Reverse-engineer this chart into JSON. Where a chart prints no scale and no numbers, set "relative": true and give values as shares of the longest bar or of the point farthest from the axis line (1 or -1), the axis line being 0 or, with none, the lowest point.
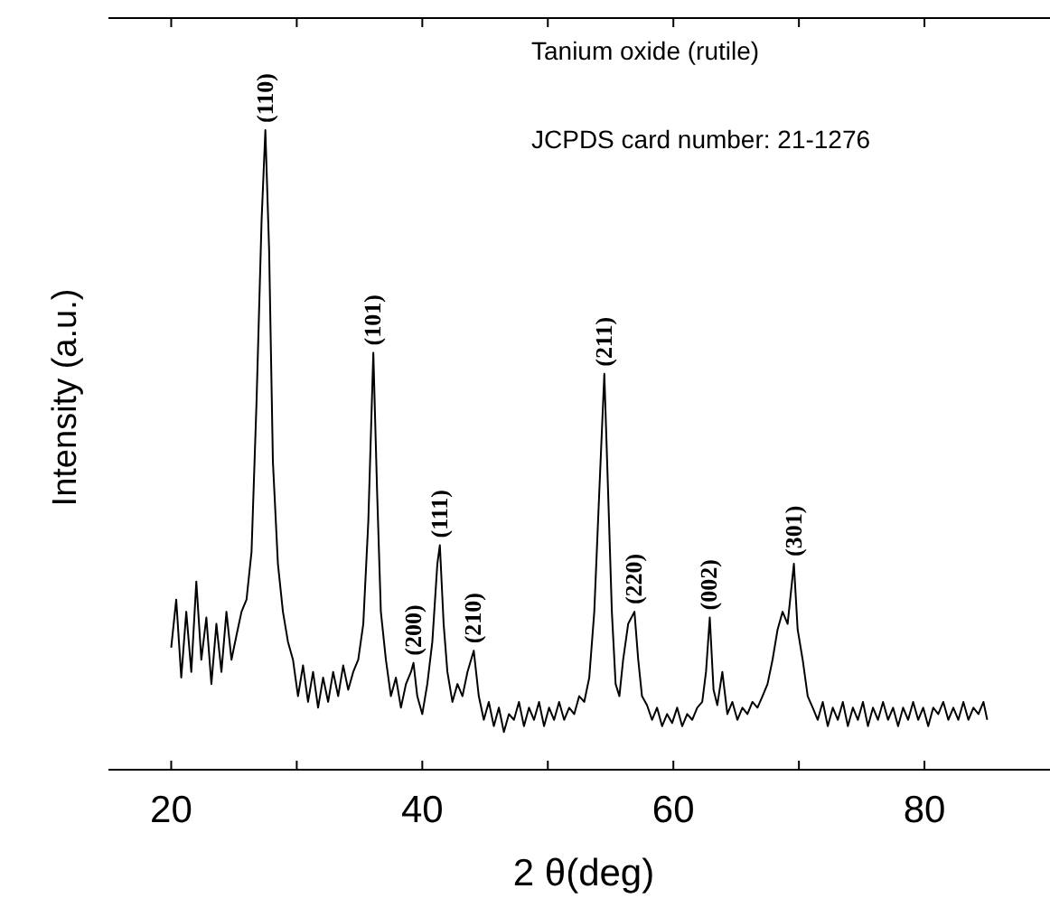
{
  "chart_data": {
    "type": "line",
    "relative": true,
    "xlabel": "2 θ(deg)",
    "ylabel": "Intensity (a.u.)",
    "xlim": [
      15,
      90
    ],
    "xticks": [
      20,
      {
        "value": 30,
        "label": null
      },
      40,
      {
        "value": 50,
        "label": null
      },
      60,
      {
        "value": 70,
        "label": null
      },
      80
    ],
    "tick_labels": "x",
    "grid": false,
    "marker": "none",
    "line_style": "solid",
    "annotations": [
      "Tanium oxide (rutile)",
      "JCPDS card number: 21-1276",
      {
        "text": "(110)",
        "x": 27.5,
        "y": 1.0
      },
      {
        "text": "(101)",
        "x": 36.1,
        "y": 0.652
      },
      {
        "text": "(200)",
        "x": 39.3,
        "y": 0.167
      },
      {
        "text": "(111)",
        "x": 41.4,
        "y": 0.351
      },
      {
        "text": "(210)",
        "x": 44.1,
        "y": 0.186
      },
      {
        "text": "(211)",
        "x": 54.5,
        "y": 0.619
      },
      {
        "text": "(220)",
        "x": 56.9,
        "y": 0.247
      },
      {
        "text": "(002)",
        "x": 62.9,
        "y": 0.238
      },
      {
        "text": "(301)",
        "x": 69.6,
        "y": 0.322
      }
    ],
    "series": [
      {
        "color": "#000000",
        "x": [
          20,
          20.4,
          20.8,
          21.2,
          21.6,
          22,
          22.4,
          22.8,
          23.2,
          23.6,
          24,
          24.4,
          24.8,
          25.2,
          25.6,
          26,
          26.4,
          26.8,
          27.2,
          27.5,
          27.8,
          28.1,
          28.5,
          28.9,
          29.3,
          29.7,
          30.1,
          30.5,
          30.9,
          31.3,
          31.7,
          32.1,
          32.5,
          32.9,
          33.3,
          33.7,
          34.1,
          34.5,
          34.9,
          35.3,
          35.7,
          36.1,
          36.4,
          36.7,
          37.1,
          37.5,
          37.9,
          38.3,
          38.7,
          39.1,
          39.3,
          39.6,
          40,
          40.4,
          40.8,
          41.2,
          41.4,
          41.7,
          42,
          42.4,
          42.8,
          43.2,
          43.6,
          44.1,
          44.5,
          44.9,
          45.3,
          45.7,
          46.1,
          46.5,
          46.9,
          47.3,
          47.7,
          48.1,
          48.5,
          48.9,
          49.3,
          49.7,
          50.1,
          50.5,
          50.9,
          51.3,
          51.7,
          52.1,
          52.5,
          52.9,
          53.3,
          53.7,
          54.1,
          54.5,
          54.8,
          55.1,
          55.4,
          55.7,
          56,
          56.4,
          56.9,
          57.2,
          57.5,
          57.9,
          58.3,
          58.7,
          59.1,
          59.5,
          59.9,
          60.3,
          60.7,
          61.1,
          61.5,
          61.9,
          62.3,
          62.6,
          62.9,
          63.2,
          63.5,
          63.9,
          64.3,
          64.7,
          65.1,
          65.5,
          65.9,
          66.3,
          66.7,
          67.1,
          67.5,
          67.9,
          68.3,
          68.7,
          69.1,
          69.6,
          69.9,
          70.3,
          70.7,
          71.1,
          71.5,
          71.9,
          72.3,
          72.7,
          73.1,
          73.5,
          73.9,
          74.3,
          74.7,
          75.1,
          75.5,
          75.9,
          76.3,
          76.7,
          77.1,
          77.5,
          77.9,
          78.3,
          78.7,
          79.1,
          79.5,
          79.9,
          80.3,
          80.7,
          81.1,
          81.5,
          81.9,
          82.3,
          82.7,
          83.1,
          83.5,
          83.9,
          84.3,
          84.7,
          85
        ],
        "values": [
          0.191,
          0.266,
          0.144,
          0.247,
          0.153,
          0.294,
          0.172,
          0.238,
          0.134,
          0.228,
          0.153,
          0.247,
          0.172,
          0.21,
          0.247,
          0.266,
          0.341,
          0.577,
          0.859,
          1.0,
          0.812,
          0.482,
          0.322,
          0.247,
          0.2,
          0.172,
          0.115,
          0.163,
          0.106,
          0.153,
          0.097,
          0.144,
          0.106,
          0.153,
          0.115,
          0.163,
          0.125,
          0.153,
          0.172,
          0.228,
          0.388,
          0.652,
          0.435,
          0.247,
          0.172,
          0.115,
          0.144,
          0.097,
          0.134,
          0.153,
          0.167,
          0.115,
          0.087,
          0.134,
          0.2,
          0.322,
          0.351,
          0.228,
          0.153,
          0.106,
          0.134,
          0.115,
          0.153,
          0.186,
          0.115,
          0.078,
          0.106,
          0.068,
          0.097,
          0.059,
          0.087,
          0.078,
          0.106,
          0.068,
          0.097,
          0.078,
          0.106,
          0.068,
          0.097,
          0.078,
          0.106,
          0.078,
          0.097,
          0.087,
          0.115,
          0.106,
          0.144,
          0.247,
          0.435,
          0.619,
          0.435,
          0.247,
          0.134,
          0.115,
          0.172,
          0.228,
          0.247,
          0.172,
          0.115,
          0.101,
          0.078,
          0.097,
          0.068,
          0.087,
          0.073,
          0.097,
          0.068,
          0.087,
          0.078,
          0.097,
          0.106,
          0.153,
          0.238,
          0.125,
          0.101,
          0.153,
          0.087,
          0.106,
          0.078,
          0.097,
          0.087,
          0.106,
          0.097,
          0.115,
          0.134,
          0.172,
          0.219,
          0.247,
          0.228,
          0.322,
          0.219,
          0.172,
          0.115,
          0.097,
          0.078,
          0.106,
          0.068,
          0.097,
          0.078,
          0.106,
          0.068,
          0.097,
          0.078,
          0.106,
          0.068,
          0.097,
          0.078,
          0.106,
          0.078,
          0.097,
          0.068,
          0.097,
          0.078,
          0.106,
          0.078,
          0.097,
          0.068,
          0.097,
          0.087,
          0.106,
          0.078,
          0.097,
          0.078,
          0.106,
          0.078,
          0.097,
          0.087,
          0.106,
          0.078
        ]
      }
    ]
  }
}
